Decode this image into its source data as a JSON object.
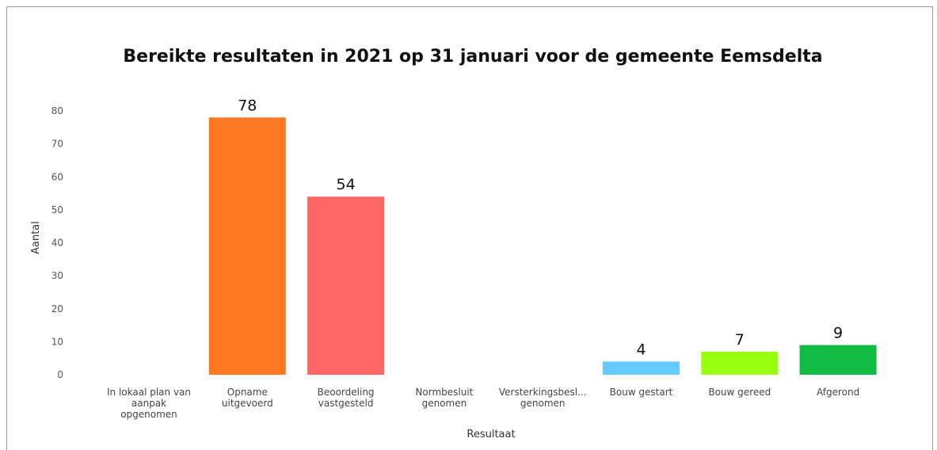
{
  "chart_data": {
    "type": "bar",
    "title": "Bereikte resultaten in 2021 op 31 januari voor de gemeente Eemsdelta",
    "xlabel": "Resultaat",
    "ylabel": "Aantal",
    "ylim": [
      0,
      80
    ],
    "yticks": [
      0,
      10,
      20,
      30,
      40,
      50,
      60,
      70,
      80
    ],
    "grid": false,
    "categories": [
      "In lokaal plan van aanpak opgenomen",
      "Opname uitgevoerd",
      "Beoordeling vastgesteld",
      "Normbesluit genomen",
      "Versterkingsbesl... genomen",
      "Bouw gestart",
      "Bouw gereed",
      "Afgerond"
    ],
    "category_lines": [
      [
        "In lokaal plan van",
        "aanpak",
        "opgenomen"
      ],
      [
        "Opname",
        "uitgevoerd"
      ],
      [
        "Beoordeling",
        "vastgesteld"
      ],
      [
        "Normbesluit",
        "genomen"
      ],
      [
        "Versterkingsbesl...",
        "genomen"
      ],
      [
        "Bouw gestart"
      ],
      [
        "Bouw gereed"
      ],
      [
        "Afgerond"
      ]
    ],
    "values": [
      0,
      78,
      54,
      0,
      0,
      4,
      7,
      9
    ],
    "data_labels": [
      "",
      "78",
      "54",
      "",
      "",
      "4",
      "7",
      "9"
    ],
    "colors": [
      "#cccccc",
      "#ff7722",
      "#ff6666",
      "#cccccc",
      "#cccccc",
      "#66ccff",
      "#99ff11",
      "#11bb44"
    ]
  }
}
